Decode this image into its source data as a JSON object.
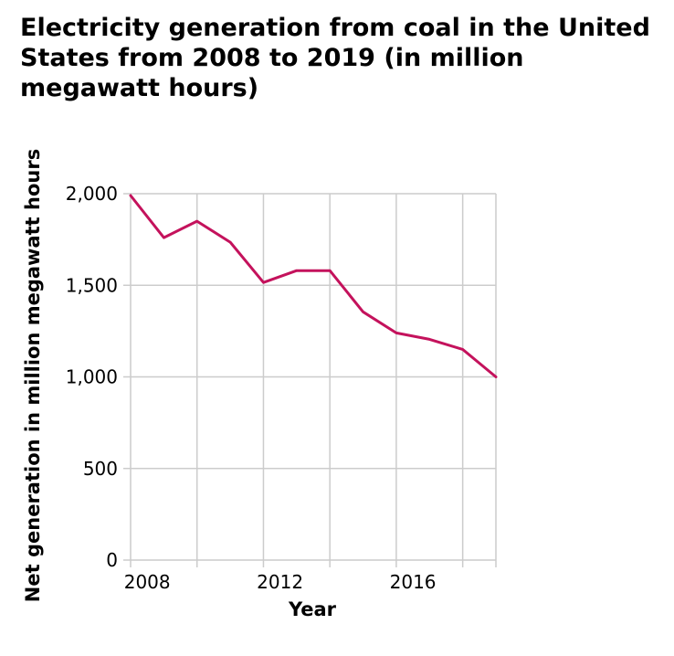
{
  "chart_data": {
    "type": "line",
    "title": "Electricity generation from coal in the United States from 2008 to 2019 (in million megawatt hours)",
    "xlabel": "Year",
    "ylabel": "Net generation in million megawatt hours",
    "x": [
      2007,
      2008,
      2009,
      2010,
      2011,
      2012,
      2013,
      2014,
      2015,
      2016,
      2017,
      2018,
      2019
    ],
    "series": [
      {
        "values": [
          1990,
          1760,
          1850,
          1735,
          1515,
          1580,
          1580,
          1355,
          1240,
          1205,
          1150,
          1000
        ],
        "x": [
          2007.5,
          2008.5,
          2009.5,
          2010.5,
          2011.5,
          2012.5,
          2013.5,
          2014.5,
          2015.5,
          2016.5,
          2017.5,
          2018.5
        ],
        "color": "#c4125c"
      }
    ],
    "xlim": [
      2007.5,
      2018.5
    ],
    "ylim": [
      0,
      2000
    ],
    "x_ticks": [
      2008,
      2012,
      2016
    ],
    "x_tick_labels": [
      "2008",
      "2012",
      "2016"
    ],
    "x_grid": [
      2009.5,
      2011.5,
      2013.5,
      2015.5,
      2017.5
    ],
    "y_ticks": [
      0,
      500,
      1000,
      1500,
      2000
    ],
    "y_tick_labels": [
      "0",
      "500",
      "1,000",
      "1,500",
      "2,000"
    ],
    "grid": true,
    "legend": "none",
    "colors": {
      "line": "#c4125c",
      "grid": "#cccccc",
      "text": "#000000"
    }
  }
}
